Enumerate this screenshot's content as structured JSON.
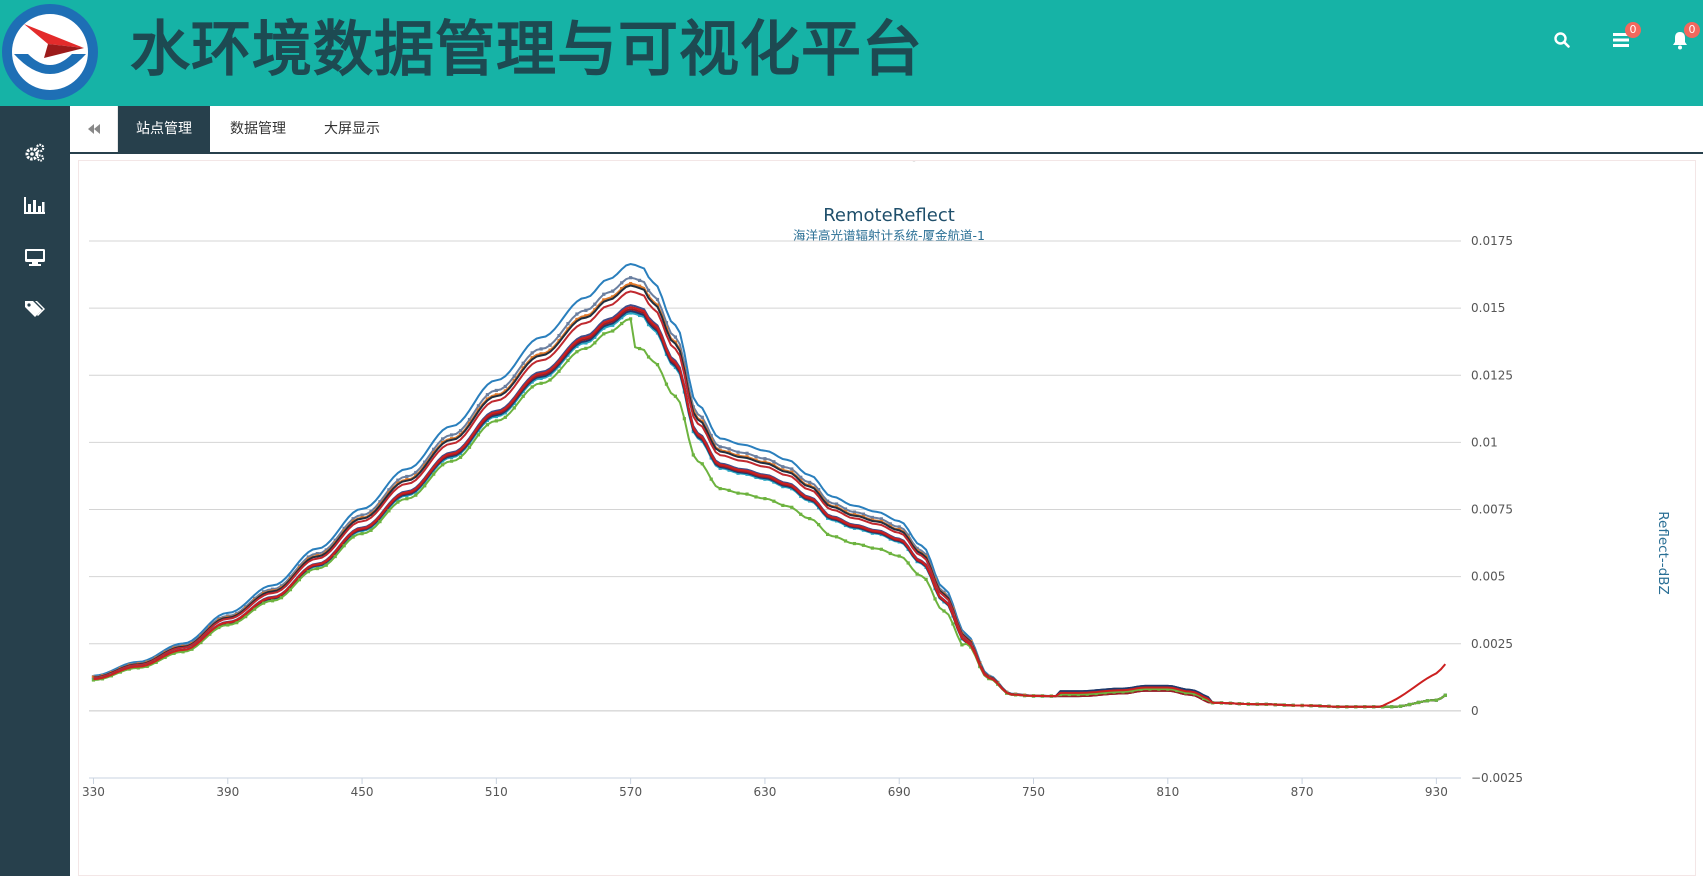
{
  "app": {
    "title": "水环境数据管理与可视化平台"
  },
  "header": {
    "icons": [
      {
        "name": "search-icon"
      },
      {
        "name": "tasks-icon",
        "badge": "0"
      },
      {
        "name": "bell-icon",
        "badge": "0"
      }
    ],
    "colors": {
      "bar": "#16b3a6",
      "title": "#1d4a52",
      "badge": "#f2685d"
    }
  },
  "sidebar": {
    "items": [
      {
        "name": "settings-icon"
      },
      {
        "name": "bar-chart-icon"
      },
      {
        "name": "monitor-icon"
      },
      {
        "name": "tags-icon"
      }
    ],
    "color": "#27404c"
  },
  "tabs": [
    {
      "label": "站点管理",
      "active": true
    },
    {
      "label": "数据管理",
      "active": false
    },
    {
      "label": "大屏显示",
      "active": false
    }
  ],
  "chart_data": {
    "type": "line",
    "title": "RemoteReflect",
    "subtitle": "海洋高光谱辐射计系统-厦金航道-1",
    "xlabel": "",
    "ylabel": "Reflect--dBZ",
    "xlim": [
      328,
      941
    ],
    "ylim": [
      -0.0025,
      0.0175
    ],
    "x_ticks": [
      "330",
      "390",
      "450",
      "510",
      "570",
      "630",
      "690",
      "750",
      "810",
      "870",
      "930"
    ],
    "y_ticks": [
      "0.0175",
      "0.015",
      "0.0125",
      "0.01",
      "0.0075",
      "0.005",
      "0.0025",
      "0",
      "−0.0025"
    ],
    "grid": true,
    "legend": "none",
    "base_profile": {
      "x": [
        330,
        350,
        370,
        390,
        410,
        430,
        450,
        470,
        490,
        510,
        530,
        550,
        560,
        570,
        575,
        580,
        590,
        600,
        610,
        620,
        630,
        640,
        650,
        660,
        670,
        680,
        690,
        700,
        710,
        720,
        730,
        740,
        750,
        770,
        790,
        800,
        810,
        820,
        830,
        850,
        870,
        890,
        910,
        930,
        935
      ],
      "y": [
        0.00115,
        0.0016,
        0.0022,
        0.0032,
        0.0041,
        0.0053,
        0.0066,
        0.0079,
        0.0093,
        0.0108,
        0.0122,
        0.0135,
        0.0141,
        0.0146,
        0.0145,
        0.014,
        0.0126,
        0.01,
        0.0089,
        0.0087,
        0.0085,
        0.0082,
        0.0077,
        0.007,
        0.0067,
        0.0065,
        0.0062,
        0.0054,
        0.004,
        0.0025,
        0.0012,
        0.0006,
        0.00055,
        0.00055,
        0.00065,
        0.00075,
        0.00075,
        0.0006,
        0.0003,
        0.00025,
        0.0002,
        0.00015,
        0.00015,
        0.0004,
        0.0006
      ]
    },
    "series": [
      {
        "color": "#2a7fbd",
        "peak_scale": 1.14,
        "tail_scale": 1.0,
        "markers": false
      },
      {
        "color": "#6a7fa0",
        "peak_scale": 1.105,
        "tail_scale": 1.0,
        "markers": true
      },
      {
        "color": "#e0782a",
        "peak_scale": 1.09,
        "tail_scale": 1.0,
        "markers": true
      },
      {
        "color": "#222f3e",
        "peak_scale": 1.085,
        "tail_scale": 1.0,
        "markers": false
      },
      {
        "color": "#c0292f",
        "peak_scale": 1.07,
        "tail_scale": 1.0,
        "markers": false
      },
      {
        "color": "#3f4d8a",
        "peak_scale": 1.035,
        "tail_scale": 1.0,
        "markers": false
      },
      {
        "color": "#2aa7c3",
        "peak_scale": 1.015,
        "tail_scale": 1.0,
        "markers": true
      },
      {
        "color": "#1e3a6e",
        "peak_scale": 1.02,
        "tail_scale": 1.0,
        "markers": false
      },
      {
        "color": "#9b1c24",
        "peak_scale": 1.025,
        "tail_scale": 1.0,
        "markers": false
      },
      {
        "color": "#6db33f",
        "peak_scale": 1.0,
        "tail_scale": 1.0,
        "markers": true,
        "green_dip": true
      },
      {
        "color": "#cc2020",
        "peak_scale": 1.03,
        "tail_scale": 1.0,
        "markers": false,
        "red_tail": true
      }
    ]
  }
}
